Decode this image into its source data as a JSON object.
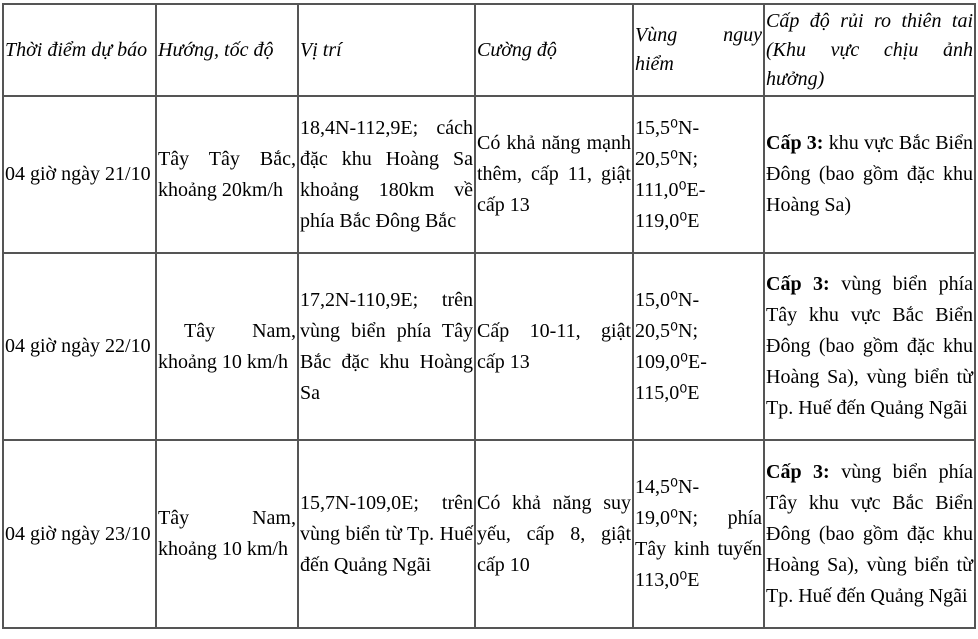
{
  "headers": [
    "Thời điểm dự báo",
    "Hướng, tốc độ",
    "Vị trí",
    "Cường độ",
    "Vùng nguy hiểm",
    "Cấp độ rủi ro thiên tai (Khu vực chịu ảnh hưởng)"
  ],
  "rows": [
    {
      "time": "04 giờ ngày 21/10",
      "direction": "Tây Tây Bắc, khoảng 20km/h",
      "position": "18,4N-112,9E; cách đặc khu Hoàng Sa khoảng 180km về phía Bắc Đông Bắc",
      "intensity": "Có khả năng mạnh thêm, cấp 11, giật cấp 13",
      "danger_zone": "15,5⁰N-20,5⁰N; 111,0⁰E-119,0⁰E",
      "risk_level": "Cấp 3:",
      "risk_area": "khu vực Bắc Biển Đông (bao gồm đặc khu Hoàng Sa)"
    },
    {
      "time": "04 giờ ngày 22/10",
      "direction": "Tây Nam, khoảng 10 km/h",
      "position": "17,2N-110,9E; trên vùng biển phía Tây Bắc đặc khu Hoàng Sa",
      "intensity": "Cấp 10-11, giật cấp 13",
      "danger_zone": "15,0⁰N-20,5⁰N; 109,0⁰E-115,0⁰E",
      "risk_level": "Cấp 3:",
      "risk_area": "vùng biển phía Tây khu vực Bắc Biển Đông (bao gồm đặc khu Hoàng Sa), vùng biển từ Tp. Huế đến Quảng Ngãi"
    },
    {
      "time": "04 giờ ngày 23/10",
      "direction": "Tây Nam, khoảng 10 km/h",
      "position": "15,7N-109,0E; trên vùng biển từ Tp. Huế đến Quảng Ngãi",
      "intensity": "Có khả năng suy yếu, cấp 8, giật cấp 10",
      "danger_zone": "14,5⁰N-19,0⁰N; phía Tây kinh tuyến 113,0⁰E",
      "risk_level": "Cấp 3:",
      "risk_area": "vùng biển phía Tây khu vực Bắc Biển Đông (bao gồm đặc khu Hoàng Sa), vùng biển từ Tp. Huế đến Quảng Ngãi"
    }
  ]
}
